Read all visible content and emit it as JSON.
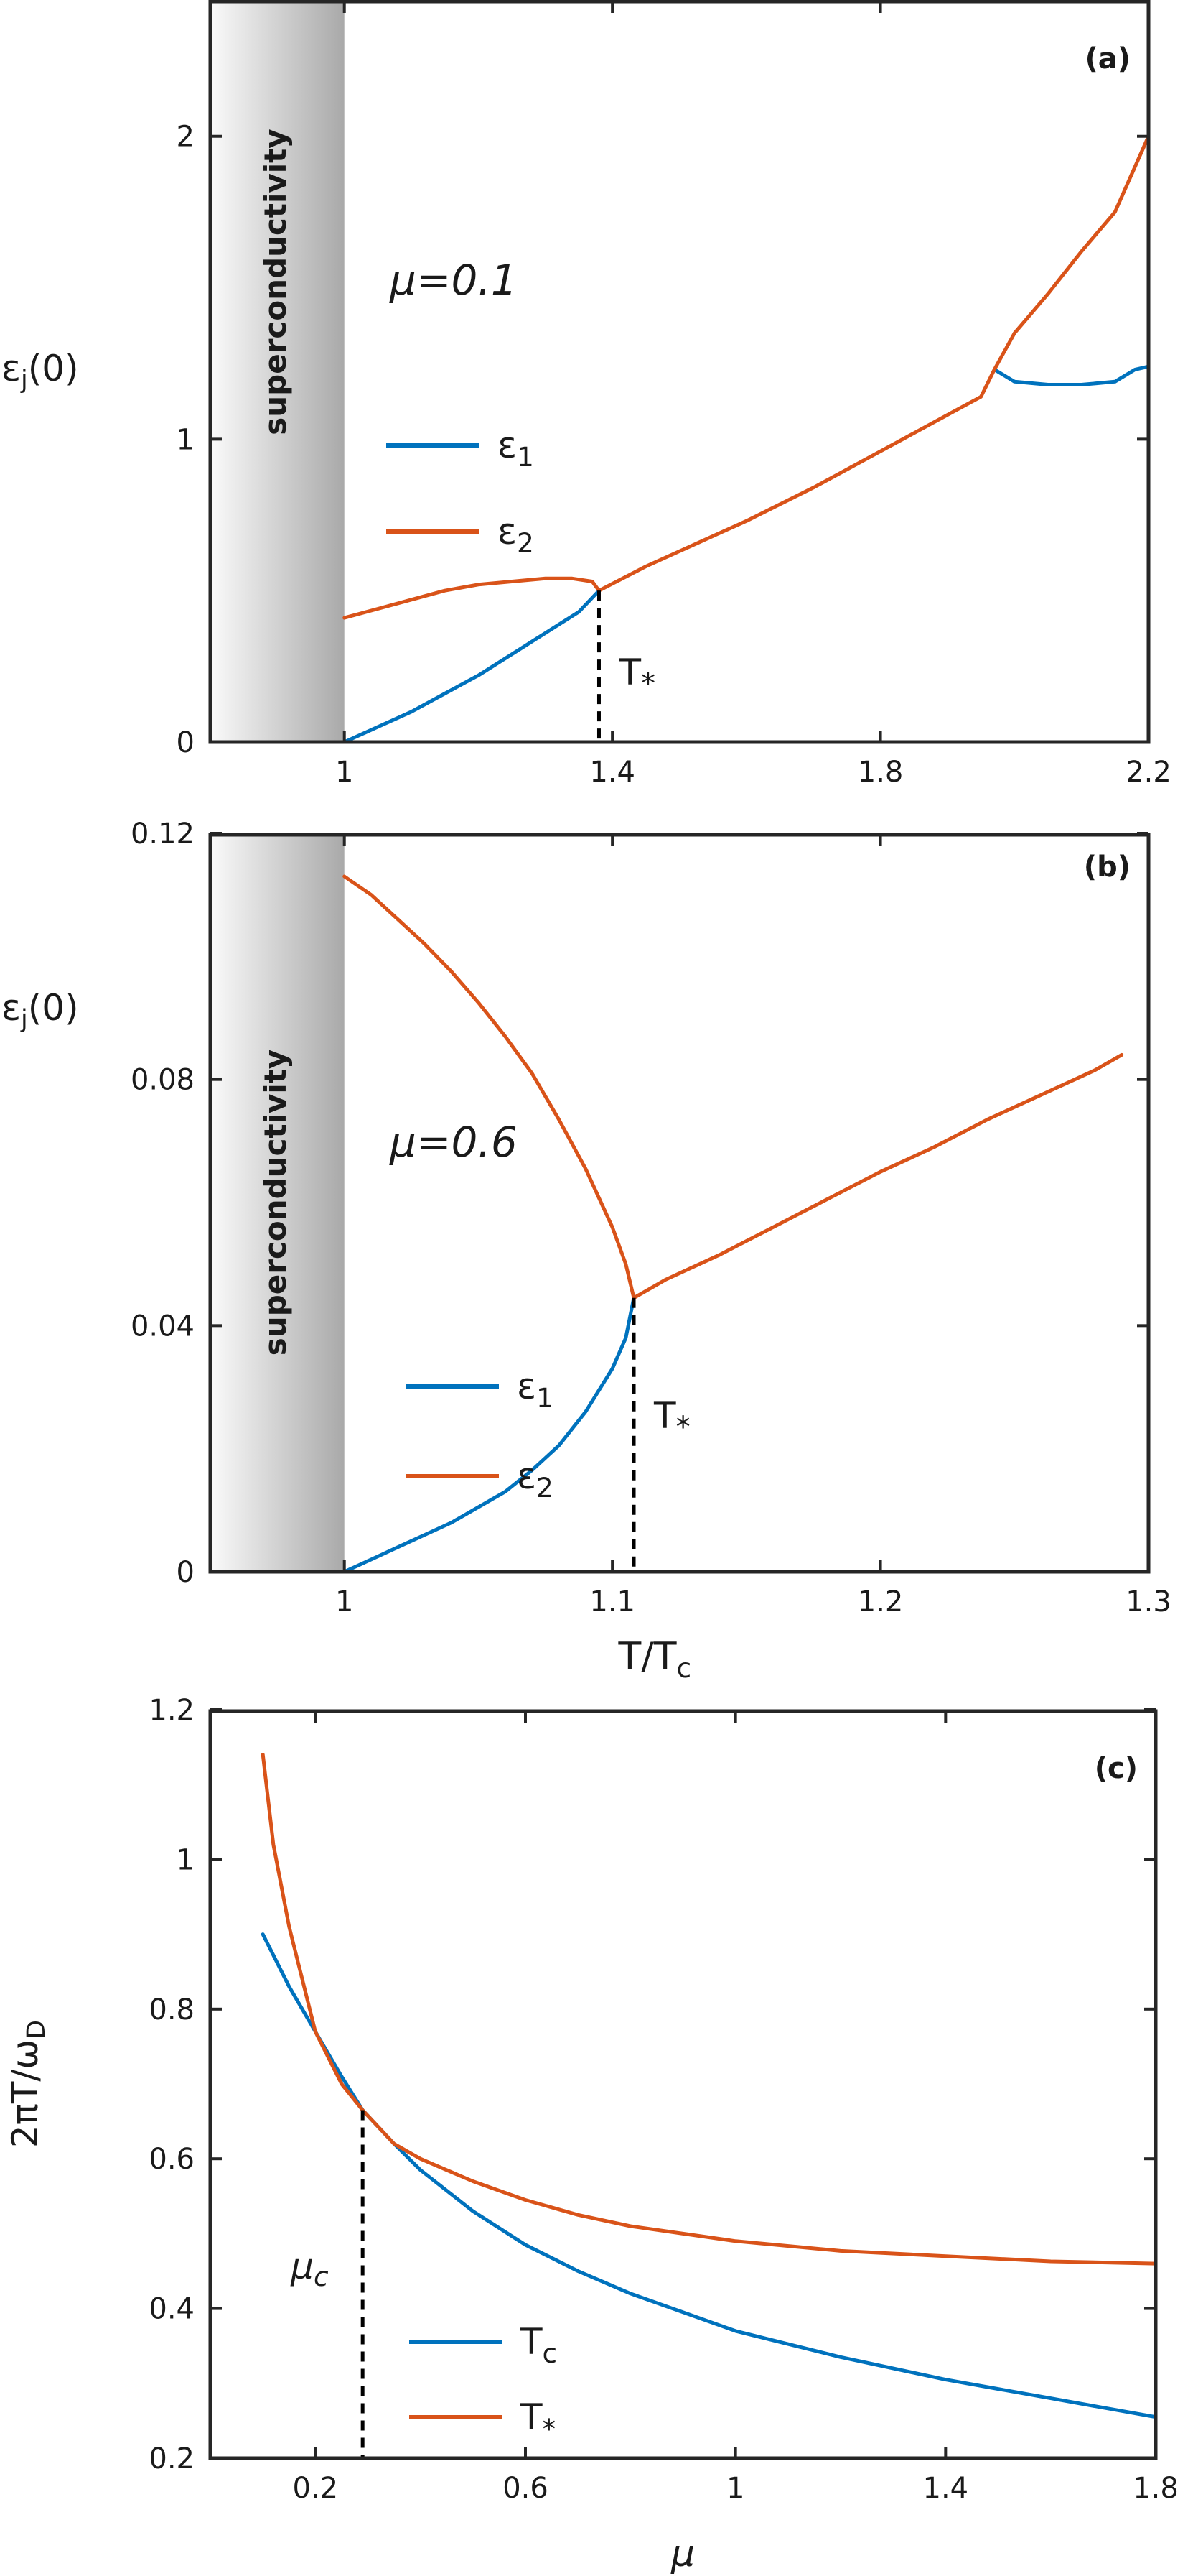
{
  "colors": {
    "eps1": "#0072BD",
    "eps2": "#D95319",
    "tc": "#0072BD",
    "tstar": "#D95319",
    "axis": "#262626"
  },
  "chart_data": [
    {
      "type": "line",
      "panel_label": "(a)",
      "ylabel": "εj(0)",
      "xlabel": "",
      "annotation_mu": "μ=0.1",
      "region_label": "superconductivity",
      "region_x": [
        0.8,
        1.0
      ],
      "marker_label": "T*",
      "marker_x": 1.38,
      "marker_y": 0.5,
      "xlim": [
        0.8,
        2.2
      ],
      "ylim": [
        0,
        2.45
      ],
      "xticks": [
        1,
        1.4,
        1.8,
        2.2
      ],
      "xtick_labels": [
        "1",
        "1.4",
        "1.8",
        "2.2"
      ],
      "yticks": [
        0,
        1,
        2
      ],
      "ytick_labels": [
        "0",
        "1",
        "2"
      ],
      "legend_position": "left-middle",
      "series": [
        {
          "name": "ε1",
          "color_key": "eps1",
          "x": [
            1.0,
            1.05,
            1.1,
            1.15,
            1.2,
            1.25,
            1.3,
            1.35,
            1.38,
            1.97,
            2.0,
            2.05,
            2.1,
            2.15,
            2.18,
            2.2
          ],
          "y": [
            0.0,
            0.05,
            0.1,
            0.16,
            0.22,
            0.29,
            0.36,
            0.43,
            0.5,
            1.23,
            1.19,
            1.18,
            1.18,
            1.19,
            1.23,
            1.24
          ]
        },
        {
          "name": "ε2",
          "color_key": "eps2",
          "x": [
            1.0,
            1.05,
            1.1,
            1.15,
            1.2,
            1.25,
            1.3,
            1.34,
            1.37,
            1.38,
            1.45,
            1.5,
            1.6,
            1.7,
            1.8,
            1.9,
            1.95,
            1.97,
            2.0,
            2.05,
            2.1,
            2.15,
            2.2
          ],
          "y": [
            0.41,
            0.44,
            0.47,
            0.5,
            0.52,
            0.53,
            0.54,
            0.54,
            0.53,
            0.5,
            0.58,
            0.63,
            0.73,
            0.84,
            0.96,
            1.08,
            1.14,
            1.23,
            1.35,
            1.48,
            1.62,
            1.75,
            2.0
          ]
        }
      ]
    },
    {
      "type": "line",
      "panel_label": "(b)",
      "ylabel": "εj(0)",
      "xlabel": "T/Tc",
      "annotation_mu": "μ=0.6",
      "region_label": "superconductivity",
      "region_x": [
        0.95,
        1.0
      ],
      "marker_label": "T*",
      "marker_x": 1.108,
      "marker_y": 0.0445,
      "xlim": [
        0.95,
        1.3
      ],
      "ylim": [
        0,
        0.12
      ],
      "xticks": [
        1,
        1.1,
        1.2,
        1.3
      ],
      "xtick_labels": [
        "1",
        "1.1",
        "1.2",
        "1.3"
      ],
      "yticks": [
        0,
        0.04,
        0.08,
        0.12
      ],
      "ytick_labels": [
        "0",
        "0.04",
        "0.08",
        "0.12"
      ],
      "legend_position": "left-lower",
      "series": [
        {
          "name": "ε1",
          "color_key": "eps1",
          "x": [
            1.0,
            1.01,
            1.02,
            1.03,
            1.04,
            1.05,
            1.06,
            1.07,
            1.08,
            1.09,
            1.1,
            1.105,
            1.108
          ],
          "y": [
            0.0,
            0.002,
            0.004,
            0.006,
            0.008,
            0.0105,
            0.013,
            0.0165,
            0.0205,
            0.026,
            0.033,
            0.038,
            0.0445
          ]
        },
        {
          "name": "ε2",
          "color_key": "eps2",
          "x": [
            1.0,
            1.01,
            1.02,
            1.03,
            1.04,
            1.05,
            1.06,
            1.07,
            1.08,
            1.09,
            1.1,
            1.105,
            1.108,
            1.12,
            1.14,
            1.16,
            1.18,
            1.2,
            1.22,
            1.24,
            1.26,
            1.28,
            1.29
          ],
          "y": [
            0.113,
            0.11,
            0.106,
            0.102,
            0.0975,
            0.0925,
            0.087,
            0.081,
            0.0735,
            0.0655,
            0.056,
            0.05,
            0.0445,
            0.0475,
            0.0515,
            0.056,
            0.0605,
            0.065,
            0.069,
            0.0735,
            0.0775,
            0.0815,
            0.084
          ]
        }
      ]
    },
    {
      "type": "line",
      "panel_label": "(c)",
      "ylabel": "2πT/ωD",
      "xlabel": "μ",
      "marker_label": "μc",
      "marker_x": 0.29,
      "marker_y": 0.665,
      "xlim": [
        0,
        1.8
      ],
      "ylim": [
        0.2,
        1.2
      ],
      "xticks": [
        0.2,
        0.6,
        1.0,
        1.4,
        1.8
      ],
      "xtick_labels": [
        "0.2",
        "0.6",
        "1",
        "1.4",
        "1.8"
      ],
      "yticks": [
        0.2,
        0.4,
        0.6,
        0.8,
        1.0,
        1.2
      ],
      "ytick_labels": [
        "0.2",
        "0.4",
        "0.6",
        "0.8",
        "1",
        "1.2"
      ],
      "legend_position": "bottom-left",
      "series": [
        {
          "name": "Tc",
          "color_key": "tc",
          "x": [
            0.1,
            0.15,
            0.2,
            0.25,
            0.29,
            0.35,
            0.4,
            0.5,
            0.6,
            0.7,
            0.8,
            0.9,
            1.0,
            1.2,
            1.4,
            1.6,
            1.8
          ],
          "y": [
            0.9,
            0.83,
            0.77,
            0.71,
            0.665,
            0.62,
            0.585,
            0.53,
            0.485,
            0.45,
            0.42,
            0.395,
            0.37,
            0.335,
            0.305,
            0.28,
            0.255
          ]
        },
        {
          "name": "T*",
          "color_key": "tstar",
          "x": [
            0.1,
            0.12,
            0.15,
            0.2,
            0.25,
            0.29,
            0.35,
            0.4,
            0.5,
            0.6,
            0.7,
            0.8,
            0.9,
            1.0,
            1.2,
            1.4,
            1.6,
            1.8
          ],
          "y": [
            1.14,
            1.02,
            0.91,
            0.77,
            0.7,
            0.665,
            0.62,
            0.6,
            0.57,
            0.545,
            0.525,
            0.51,
            0.5,
            0.49,
            0.477,
            0.47,
            0.463,
            0.46
          ]
        }
      ]
    }
  ]
}
